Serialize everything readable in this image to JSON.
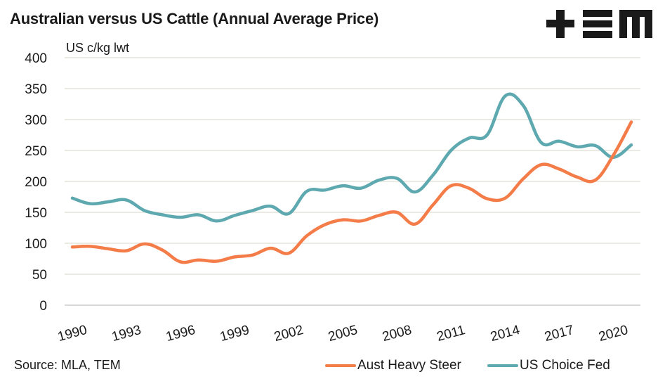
{
  "header": {
    "title": "Australian versus US Cattle (Annual Average Price)",
    "logo_text": "+EM",
    "source": "Source: MLA, TEM"
  },
  "chart_data": {
    "type": "line",
    "title": "Australian versus US Cattle (Annual Average Price)",
    "xlabel": "",
    "ylabel": "US c/kg lwt",
    "ylim": [
      0,
      400
    ],
    "yticks": [
      0,
      50,
      100,
      150,
      200,
      250,
      300,
      350,
      400
    ],
    "x": [
      1990,
      1991,
      1992,
      1993,
      1994,
      1995,
      1996,
      1997,
      1998,
      1999,
      2000,
      2001,
      2002,
      2003,
      2004,
      2005,
      2006,
      2007,
      2008,
      2009,
      2010,
      2011,
      2012,
      2013,
      2014,
      2015,
      2016,
      2017,
      2018,
      2019,
      2020,
      2021
    ],
    "xtick_labels": [
      "1990",
      "1993",
      "1996",
      "1999",
      "2002",
      "2005",
      "2008",
      "2011",
      "2014",
      "2017",
      "2020"
    ],
    "grid": true,
    "legend_position": "bottom-right",
    "series": [
      {
        "name": "Aust Heavy Steer",
        "color": "#f47c48",
        "values": [
          94,
          95,
          91,
          88,
          99,
          89,
          70,
          73,
          71,
          78,
          81,
          92,
          84,
          112,
          130,
          138,
          136,
          145,
          150,
          131,
          162,
          193,
          189,
          172,
          173,
          204,
          227,
          220,
          207,
          202,
          242,
          296
        ]
      },
      {
        "name": "US Choice Fed",
        "color": "#5ea8b0",
        "values": [
          173,
          164,
          167,
          170,
          153,
          146,
          142,
          146,
          136,
          145,
          153,
          160,
          148,
          184,
          186,
          193,
          189,
          202,
          205,
          183,
          210,
          250,
          270,
          275,
          338,
          323,
          263,
          265,
          256,
          258,
          239,
          259
        ]
      }
    ]
  }
}
